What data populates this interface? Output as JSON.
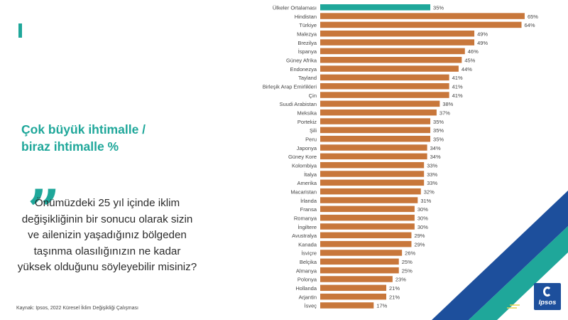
{
  "headline_line1": "Çok büyük ihtimalle /",
  "headline_line2": "biraz ihtimalle %",
  "quote_mark": "„",
  "question": "Önümüzdeki 25 yıl içinde iklim değişikliğinin bir sonucu olarak sizin ve ailenizin yaşadığınız bölgeden taşınma olasılığınızın ne kadar yüksek olduğunu söyleyebilir misiniz?",
  "source": "Kaynak: Ipsos, 2022 Küresel İklim Değişikliği Çalışması",
  "logo": {
    "text": "Ipsos"
  },
  "colors": {
    "accent": "#1fa79a",
    "average_bar": "#1fa79a",
    "country_bar": "#c8773b",
    "deco_blue": "#1d4f9c",
    "deco_green": "#1fa79a",
    "deco_yellow": "#e8d44d"
  },
  "chart_data": {
    "type": "bar",
    "orientation": "horizontal",
    "value_suffix": "%",
    "xlim": [
      0,
      70
    ],
    "categories": [
      "Ülkeler Ortalaması",
      "Hindistan",
      "Türkiye",
      "Malezya",
      "Brezilya",
      "İspanya",
      "Güney Afrika",
      "Endonezya",
      "Tayland",
      "Birleşik Arap Emirlikleri",
      "Çin",
      "Suudi Arabistan",
      "Meksika",
      "Portekiz",
      "Şili",
      "Peru",
      "Japonya",
      "Güney Kore",
      "Kolombiya",
      "İtalya",
      "Amerika",
      "Macaristan",
      "İrlanda",
      "Fransa",
      "Romanya",
      "İngiltere",
      "Avustralya",
      "Kanada",
      "İsviçre",
      "Belçika",
      "Almanya",
      "Polonya",
      "Hollanda",
      "Arjantin",
      "İsveç"
    ],
    "values": [
      35,
      65,
      64,
      49,
      49,
      46,
      45,
      44,
      41,
      41,
      41,
      38,
      37,
      35,
      35,
      35,
      34,
      34,
      33,
      33,
      33,
      32,
      31,
      30,
      30,
      30,
      29,
      29,
      26,
      25,
      25,
      23,
      21,
      21,
      17
    ],
    "highlight_index": 0
  }
}
